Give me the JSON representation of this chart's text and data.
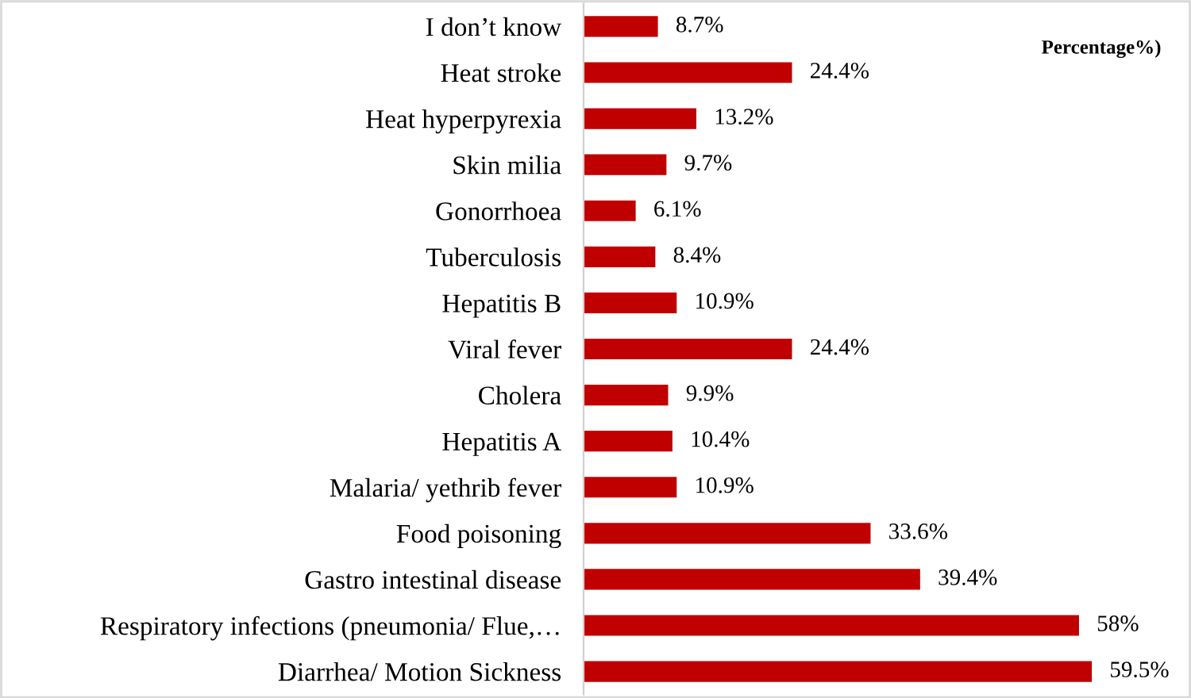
{
  "chart_data": {
    "type": "bar",
    "orientation": "horizontal",
    "categories": [
      "I don’t know",
      "Heat stroke",
      "Heat hyperpyrexia",
      "Skin milia",
      "Gonorrhoea",
      "Tuberculosis",
      "Hepatitis B",
      "Viral fever",
      "Cholera",
      "Hepatitis A",
      "Malaria/ yethrib fever",
      "Food poisoning",
      "Gastro intestinal disease",
      "Respiratory infections (pneumonia/ Flue,…",
      "Diarrhea/ Motion Sickness"
    ],
    "values": [
      8.7,
      24.4,
      13.2,
      9.7,
      6.1,
      8.4,
      10.9,
      24.4,
      9.9,
      10.4,
      10.9,
      33.6,
      39.4,
      58,
      59.5
    ],
    "value_labels": [
      "8.7%",
      "24.4%",
      "13.2%",
      "9.7%",
      "6.1%",
      "8.4%",
      "10.9%",
      "24.4%",
      "9.9%",
      "10.4%",
      "10.9%",
      "33.6%",
      "39.4%",
      "58%",
      "59.5%"
    ],
    "color": "#c00000",
    "annotations": [
      "Percentage%)"
    ],
    "grid": false,
    "legend": false
  }
}
